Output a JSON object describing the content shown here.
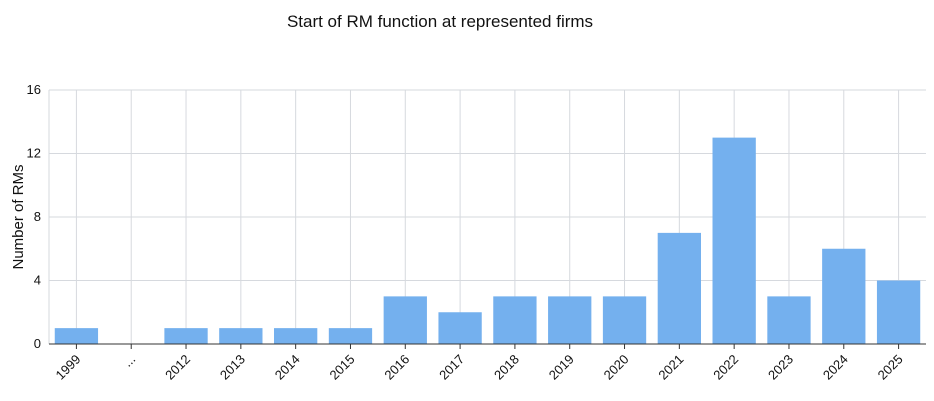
{
  "chart_data": {
    "type": "bar",
    "title": "Start of RM function at represented firms",
    "xlabel": "",
    "ylabel": "Number of RMs",
    "categories": [
      "1999",
      "...",
      "2012",
      "2013",
      "2014",
      "2015",
      "2016",
      "2017",
      "2018",
      "2019",
      "2020",
      "2021",
      "2022",
      "2023",
      "2024",
      "2025"
    ],
    "values": [
      1,
      0,
      1,
      1,
      1,
      1,
      3,
      2,
      3,
      3,
      3,
      7,
      13,
      3,
      6,
      4
    ],
    "ylim": [
      0,
      16
    ],
    "yticks": [
      0,
      4,
      8,
      12,
      16
    ],
    "grid": true,
    "bar_color": "#74b0ee"
  }
}
